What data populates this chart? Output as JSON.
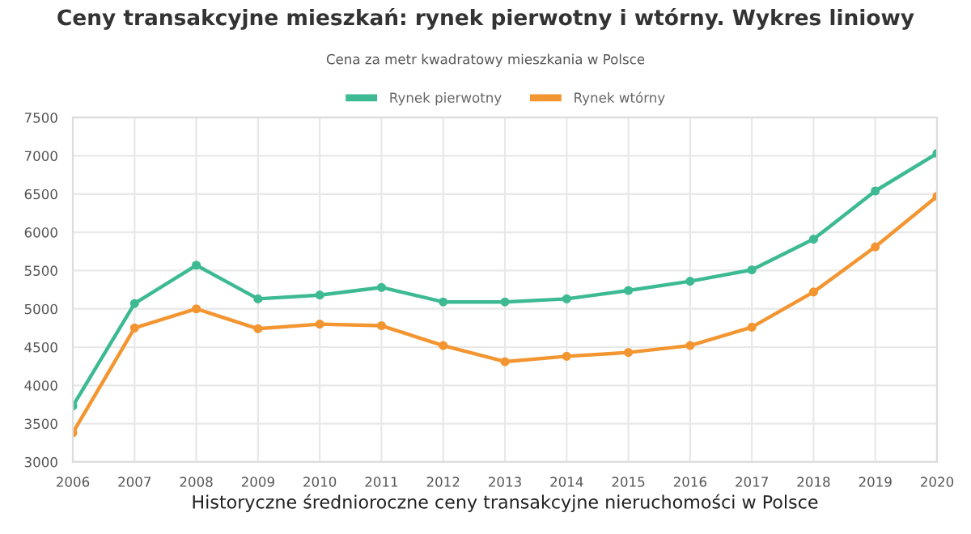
{
  "chart_data": {
    "type": "line",
    "title": "Ceny transakcyjne mieszkań: rynek pierwotny i wtórny. Wykres liniowy",
    "subtitle": "Cena za metr kwadratowy mieszkania w Polsce",
    "xlabel": "Historyczne średnioroczne ceny transakcyjne nieruchomości w Polsce",
    "x": [
      2006,
      2007,
      2008,
      2009,
      2010,
      2011,
      2012,
      2013,
      2014,
      2015,
      2016,
      2017,
      2018,
      2019,
      2020
    ],
    "series": [
      {
        "name": "Rynek pierwotny",
        "color": "#3dba93",
        "values": [
          3730,
          5070,
          5570,
          5130,
          5180,
          5280,
          5090,
          5090,
          5130,
          5240,
          5360,
          5510,
          5910,
          6540,
          7030
        ]
      },
      {
        "name": "Rynek wtórny",
        "color": "#f39530",
        "values": [
          3380,
          4750,
          5000,
          4740,
          4800,
          4780,
          4520,
          4310,
          4380,
          4430,
          4520,
          4760,
          5220,
          5810,
          6470
        ]
      }
    ],
    "xlim": [
      2006,
      2020
    ],
    "xticks": [
      2006,
      2007,
      2008,
      2009,
      2010,
      2011,
      2012,
      2013,
      2014,
      2015,
      2016,
      2017,
      2018,
      2019,
      2020
    ],
    "ylim": [
      3000,
      7500
    ],
    "yticks": [
      3000,
      3500,
      4000,
      4500,
      5000,
      5500,
      6000,
      6500,
      7000,
      7500
    ],
    "grid": true,
    "legend": "top",
    "marker": "circle",
    "line_style": "solid"
  }
}
